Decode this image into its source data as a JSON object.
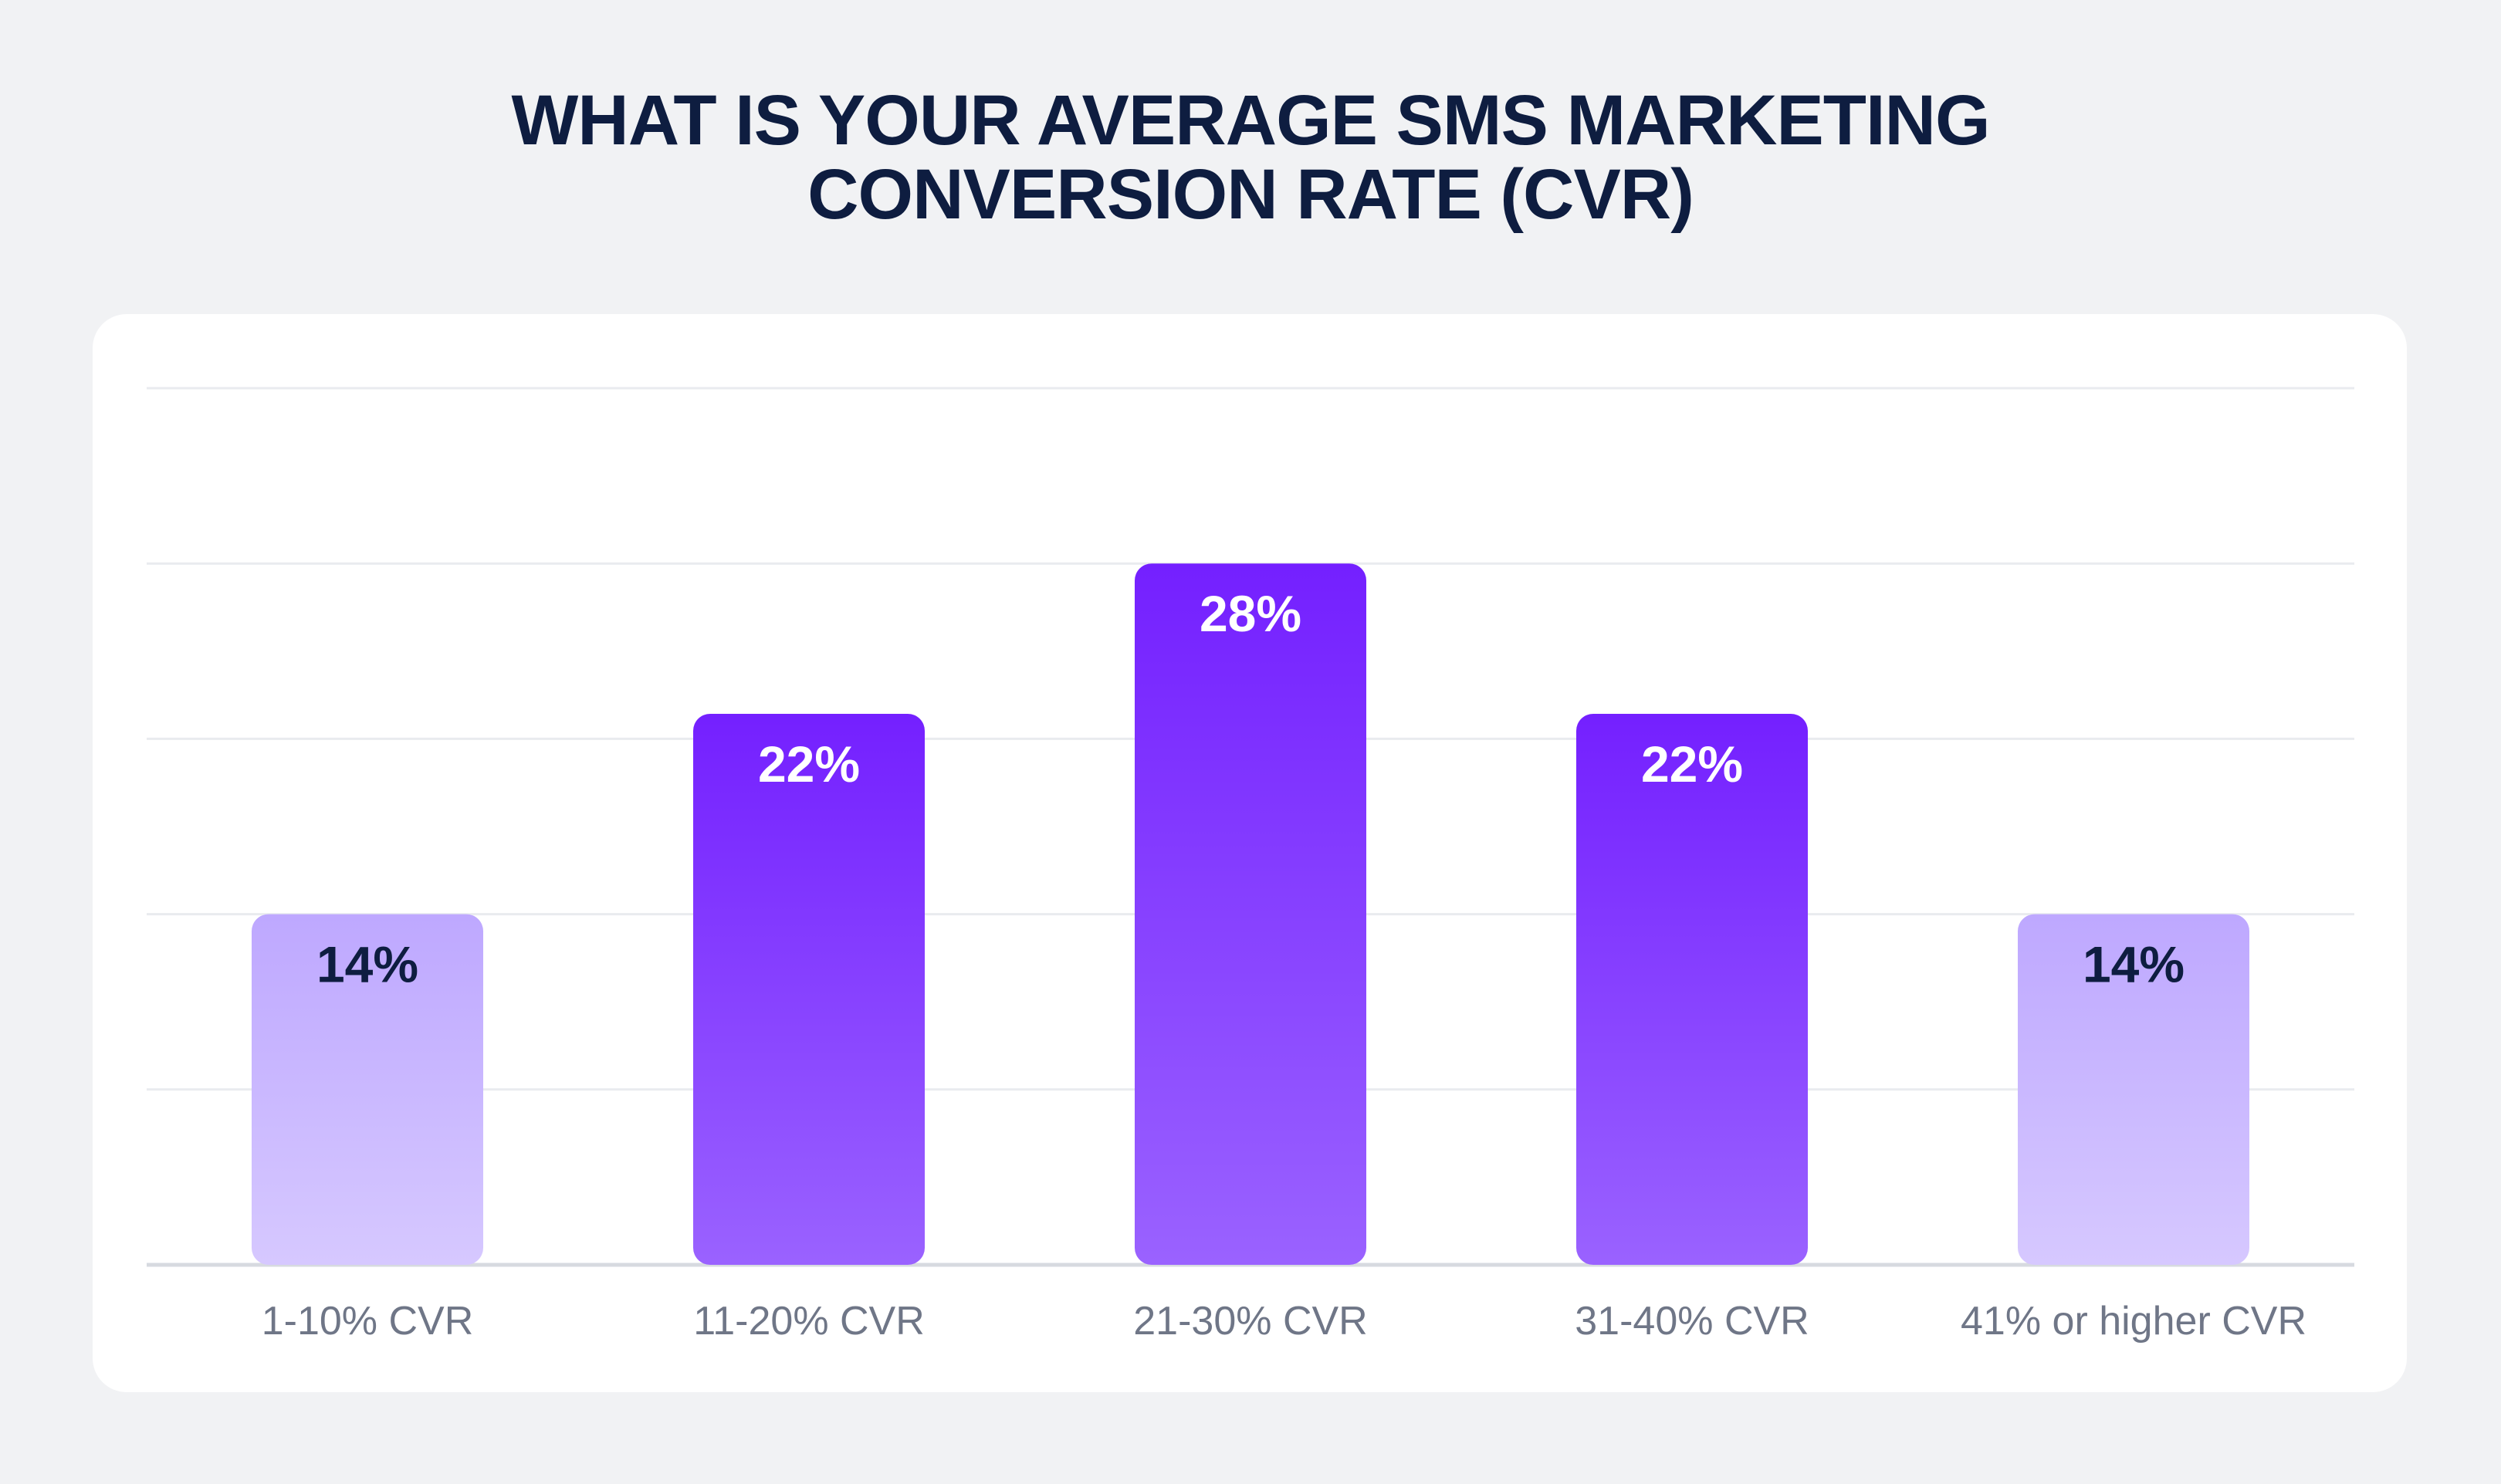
{
  "chart_data": {
    "type": "bar",
    "title": "WHAT IS YOUR AVERAGE SMS MARKETING CONVERSION RATE (CVR)",
    "title_lines": [
      "WHAT IS YOUR AVERAGE SMS MARKETING",
      "CONVERSION RATE (CVR)"
    ],
    "categories": [
      "1-10% CVR",
      "11-20% CVR",
      "21-30% CVR",
      "31-40% CVR",
      "41% or higher CVR"
    ],
    "values": [
      14,
      22,
      28,
      22,
      14
    ],
    "value_labels": [
      "14%",
      "22%",
      "28%",
      "22%",
      "14%"
    ],
    "xlabel": "",
    "ylabel": "",
    "ylim": [
      0,
      35
    ],
    "grid": true,
    "legend": "none",
    "colors": {
      "strong_bar_top": "#7420ff",
      "strong_bar_bottom": "#9a62ff",
      "light_bar_top": "#bea8ff",
      "light_bar_bottom": "#d6c8ff",
      "strong_label": "#ffffff",
      "light_label": "#0e1d40",
      "category_label": "#6f7687",
      "grid": "#e9ebef",
      "axis": "#d7dae0"
    }
  }
}
